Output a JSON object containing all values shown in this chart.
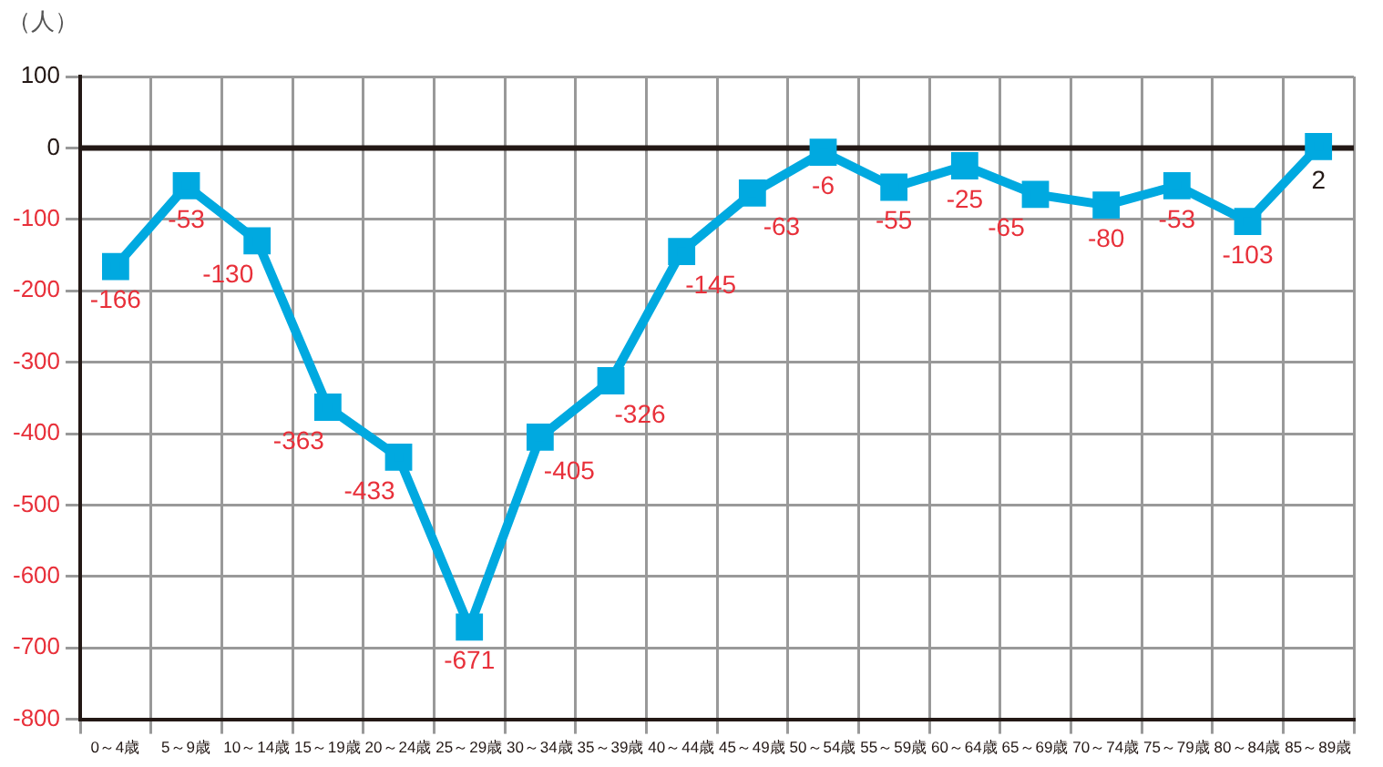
{
  "chart_data": {
    "type": "line",
    "ylabel": "（人）",
    "categories": [
      "0～4歳",
      "5～9歳",
      "10～14歳",
      "15～19歳",
      "20～24歳",
      "25～29歳",
      "30～34歳",
      "35～39歳",
      "40～44歳",
      "45～49歳",
      "50～54歳",
      "55～59歳",
      "60～64歳",
      "65～69歳",
      "70～74歳",
      "75～79歳",
      "80～84歳",
      "85～89歳"
    ],
    "series": [
      {
        "color": "#00a9e0",
        "values": [
          -166,
          -53,
          -130,
          -363,
          -433,
          -671,
          -405,
          -326,
          -145,
          -63,
          -6,
          -55,
          -25,
          -65,
          -80,
          -53,
          -103,
          2
        ]
      }
    ],
    "ylim": [
      -800,
      100
    ],
    "yticks": [
      -800,
      -700,
      -600,
      -500,
      -400,
      -300,
      -200,
      -100,
      0,
      100
    ],
    "ref_lines": [
      {
        "axis": "y",
        "value": 0,
        "color": "#231815"
      }
    ],
    "grid": true,
    "legend": false,
    "marker": "square",
    "line_style": "solid",
    "data_labels": true
  }
}
